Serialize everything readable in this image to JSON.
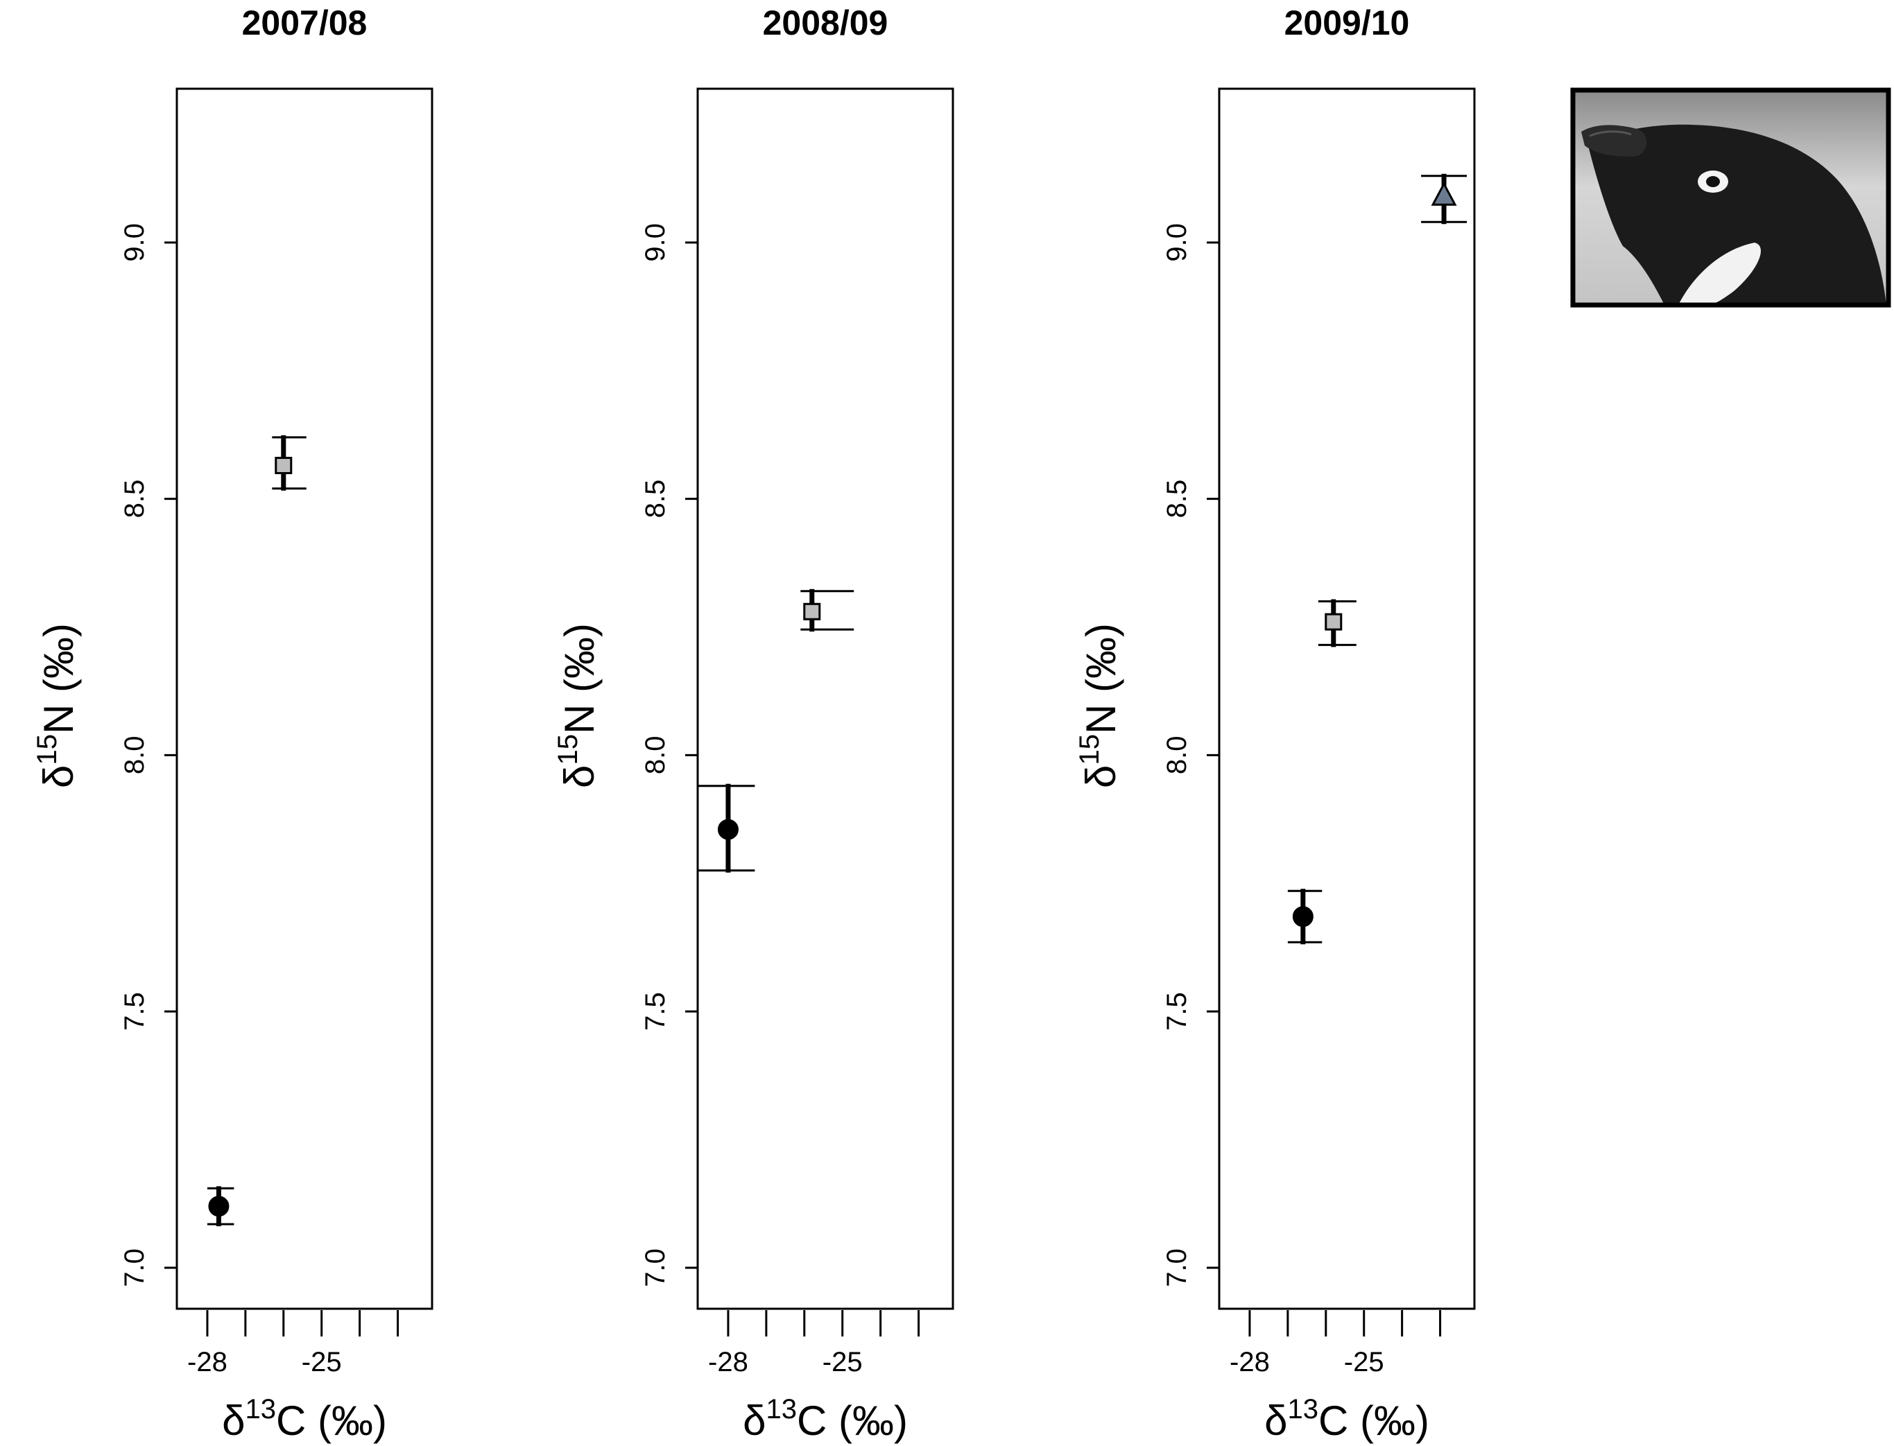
{
  "chart_data": [
    {
      "type": "scatter",
      "title": "2007/08",
      "xlabel": "δ13C (‰)",
      "ylabel": "δ15N (‰)",
      "xlim": [
        -28.8,
        -22.1
      ],
      "ylim": [
        6.92,
        9.3
      ],
      "x_ticks": [
        -28,
        -27,
        -26,
        -25,
        -24,
        -23
      ],
      "x_tick_labels": {
        "-28": "-28",
        "-25": "-25"
      },
      "y_ticks": [
        7.0,
        7.5,
        8.0,
        8.5,
        9.0
      ],
      "y_tick_labels": [
        "7.0",
        "7.5",
        "8.0",
        "8.5",
        "9.0"
      ],
      "series": [
        {
          "marker": "circle",
          "fill": "#000000",
          "x": -27.7,
          "y": 7.12,
          "xerr_low": -28.0,
          "xerr_high": -27.3,
          "yerr_low": 7.085,
          "yerr_high": 7.155
        },
        {
          "marker": "square",
          "fill": "#bdbdbd",
          "x": -26.0,
          "y": 8.565,
          "xerr_low": -26.3,
          "xerr_high": -25.4,
          "yerr_low": 8.52,
          "yerr_high": 8.62
        }
      ]
    },
    {
      "type": "scatter",
      "title": "2008/09",
      "xlabel": "δ13C (‰)",
      "ylabel": "δ15N (‰)",
      "xlim": [
        -28.8,
        -22.1
      ],
      "ylim": [
        6.92,
        9.3
      ],
      "x_ticks": [
        -28,
        -27,
        -26,
        -25,
        -24,
        -23
      ],
      "x_tick_labels": {
        "-28": "-28",
        "-25": "-25"
      },
      "y_ticks": [
        7.0,
        7.5,
        8.0,
        8.5,
        9.0
      ],
      "y_tick_labels": [
        "7.0",
        "7.5",
        "8.0",
        "8.5",
        "9.0"
      ],
      "series": [
        {
          "marker": "circle",
          "fill": "#000000",
          "x": -28.0,
          "y": 7.855,
          "xerr_low": -28.8,
          "xerr_high": -27.3,
          "yerr_low": 7.775,
          "yerr_high": 7.94
        },
        {
          "marker": "square",
          "fill": "#bdbdbd",
          "x": -25.8,
          "y": 8.28,
          "xerr_low": -26.1,
          "xerr_high": -24.7,
          "yerr_low": 8.245,
          "yerr_high": 8.32
        }
      ]
    },
    {
      "type": "scatter",
      "title": "2009/10",
      "xlabel": "δ13C (‰)",
      "ylabel": "δ15N (‰)",
      "xlim": [
        -28.8,
        -22.1
      ],
      "ylim": [
        6.92,
        9.3
      ],
      "x_ticks": [
        -28,
        -27,
        -26,
        -25,
        -24,
        -23
      ],
      "x_tick_labels": {
        "-28": "-28",
        "-25": "-25"
      },
      "y_ticks": [
        7.0,
        7.5,
        8.0,
        8.5,
        9.0
      ],
      "y_tick_labels": [
        "7.0",
        "7.5",
        "8.0",
        "8.5",
        "9.0"
      ],
      "series": [
        {
          "marker": "circle",
          "fill": "#000000",
          "x": -26.6,
          "y": 7.685,
          "xerr_low": -27.0,
          "xerr_high": -26.1,
          "yerr_low": 7.635,
          "yerr_high": 7.735
        },
        {
          "marker": "square",
          "fill": "#bdbdbd",
          "x": -25.8,
          "y": 8.26,
          "xerr_low": -26.2,
          "xerr_high": -25.2,
          "yerr_low": 8.215,
          "yerr_high": 8.3
        },
        {
          "marker": "triangle",
          "fill": "#6b7a8f",
          "x": -22.9,
          "y": 9.09,
          "xerr_low": -23.5,
          "xerr_high": -22.3,
          "yerr_low": 9.04,
          "yerr_high": 9.13
        }
      ]
    }
  ],
  "photo": {
    "subject": "penguin-head-photo"
  }
}
